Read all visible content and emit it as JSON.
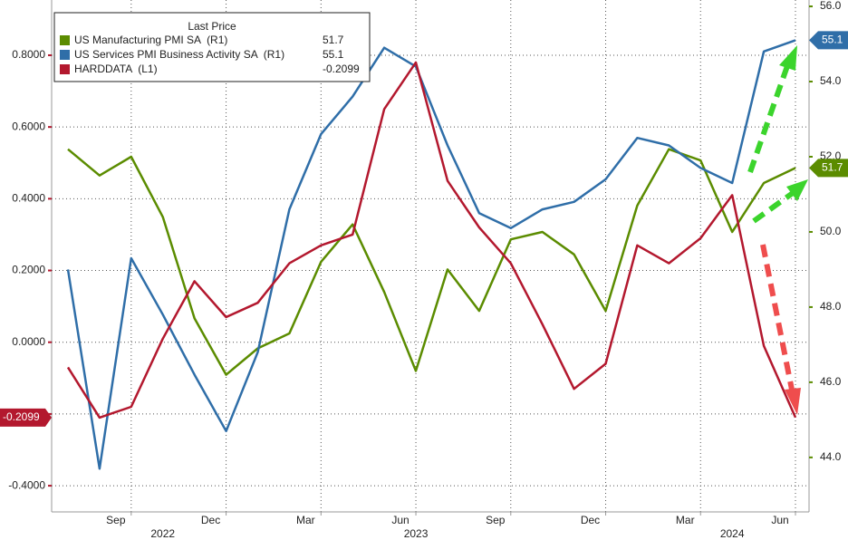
{
  "chart_data": {
    "type": "line",
    "legend_title": "Last Price",
    "x": [
      "2022-07",
      "2022-08",
      "2022-09",
      "2022-10",
      "2022-11",
      "2022-12",
      "2023-01",
      "2023-02",
      "2023-03",
      "2023-04",
      "2023-05",
      "2023-06",
      "2023-07",
      "2023-08",
      "2023-09",
      "2023-10",
      "2023-11",
      "2023-12",
      "2024-01",
      "2024-02",
      "2024-03",
      "2024-04",
      "2024-05",
      "2024-06"
    ],
    "xticks": [
      {
        "value": "2022-09",
        "label": "Sep"
      },
      {
        "value": "2022-12",
        "label": "Dec"
      },
      {
        "value": "2023-03",
        "label": "Mar"
      },
      {
        "value": "2023-06",
        "label": "Jun"
      },
      {
        "value": "2023-09",
        "label": "Sep"
      },
      {
        "value": "2023-12",
        "label": "Dec"
      },
      {
        "value": "2024-03",
        "label": "Mar"
      },
      {
        "value": "2024-06",
        "label": "Jun"
      }
    ],
    "year_labels": [
      {
        "value": "2022-10",
        "label": "2022"
      },
      {
        "value": "2023-06",
        "label": "2023"
      },
      {
        "value": "2024-04",
        "label": "2024"
      }
    ],
    "series": [
      {
        "name": "US Manufacturing PMI SA  (R1)",
        "color": "#5b8c00",
        "axis": "y2",
        "values": [
          52.2,
          51.5,
          52.0,
          50.4,
          47.7,
          46.2,
          46.9,
          47.3,
          49.2,
          50.2,
          48.4,
          46.3,
          49.0,
          47.9,
          49.8,
          50.0,
          49.4,
          47.9,
          50.7,
          52.2,
          51.9,
          50.0,
          51.3,
          51.7
        ]
      },
      {
        "name": "US Services PMI Business Activity SA  (R1)",
        "color": "#2f6ea8",
        "axis": "y2",
        "values": [
          49.0,
          43.7,
          49.3,
          47.8,
          46.2,
          44.7,
          46.8,
          50.6,
          52.6,
          53.6,
          54.9,
          54.4,
          52.3,
          50.5,
          50.1,
          50.6,
          50.8,
          51.4,
          52.5,
          52.3,
          51.7,
          51.3,
          54.8,
          55.1
        ]
      },
      {
        "name": "HARDDATA  (L1)",
        "color": "#b3182e",
        "values": [
          -0.07,
          -0.21,
          -0.18,
          0.01,
          0.17,
          0.07,
          0.11,
          0.22,
          0.27,
          0.3,
          0.65,
          0.78,
          0.45,
          0.32,
          0.22,
          0.05,
          -0.13,
          -0.06,
          0.27,
          0.22,
          0.29,
          0.41,
          -0.01,
          -0.2099
        ]
      }
    ],
    "ylim": [
      -0.473,
      0.954
    ],
    "yticks": [
      {
        "value": -0.4,
        "label": "-0.4000"
      },
      {
        "value": -0.2,
        "label": "-0.2000"
      },
      {
        "value": 0,
        "label": "0.0000"
      },
      {
        "value": 0.2,
        "label": "0.2000"
      },
      {
        "value": 0.4,
        "label": "0.4000"
      },
      {
        "value": 0.6,
        "label": "0.6000"
      },
      {
        "value": 0.8,
        "label": "0.8000"
      }
    ],
    "y2lim": [
      42.55,
      56.17
    ],
    "y2ticks": [
      {
        "value": 44,
        "label": "44.0"
      },
      {
        "value": 46,
        "label": "46.0"
      },
      {
        "value": 48,
        "label": "48.0"
      },
      {
        "value": 50,
        "label": "50.0"
      },
      {
        "value": 52,
        "label": "52.0"
      },
      {
        "value": 54,
        "label": "54.0"
      },
      {
        "value": 56,
        "label": "56.0"
      }
    ],
    "grid": true
  }
}
